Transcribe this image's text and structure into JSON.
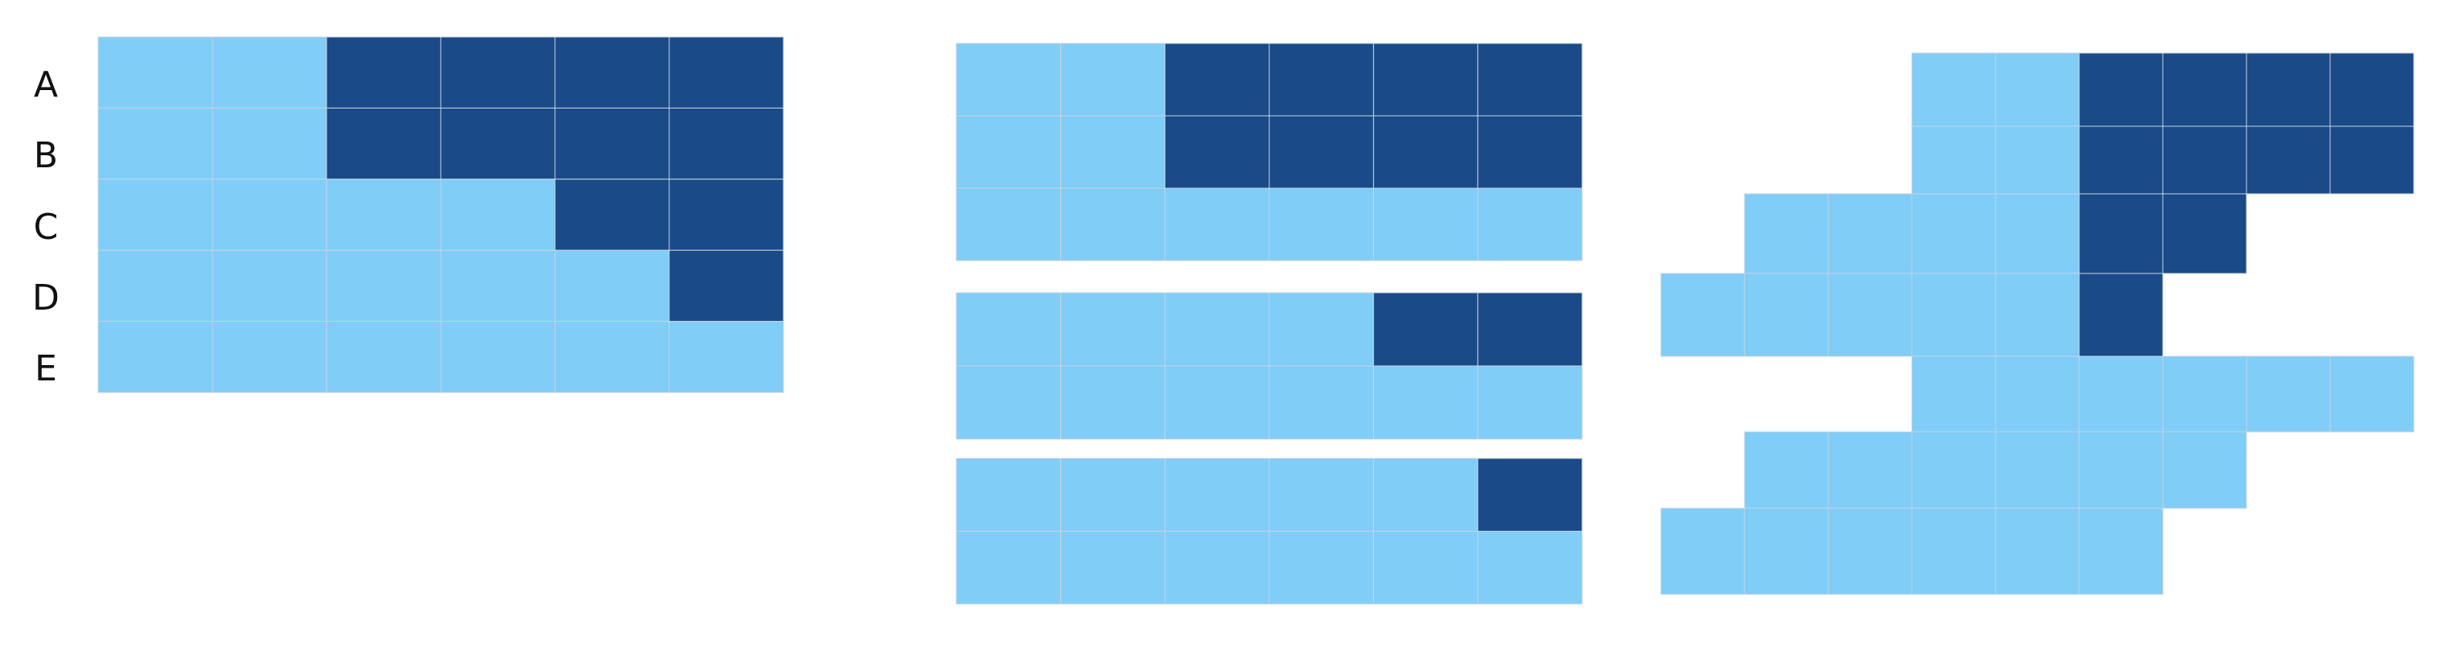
{
  "colors": {
    "light": "#80cdf8",
    "dark": "#1a4a87",
    "gridline": "#c6d4e0"
  },
  "row_labels": {
    "a": "A",
    "b": "B",
    "c": "C",
    "d": "D",
    "e": "E"
  },
  "panels": {
    "left": {
      "rows": [
        [
          0,
          0,
          1,
          1,
          1,
          1
        ],
        [
          0,
          0,
          1,
          1,
          1,
          1
        ],
        [
          0,
          0,
          0,
          0,
          1,
          1
        ],
        [
          0,
          0,
          0,
          0,
          0,
          1
        ],
        [
          0,
          0,
          0,
          0,
          0,
          0
        ]
      ]
    },
    "middle": {
      "blocks": [
        [
          [
            0,
            0,
            1,
            1,
            1,
            1
          ],
          [
            0,
            0,
            1,
            1,
            1,
            1
          ],
          [
            0,
            0,
            0,
            0,
            0,
            0
          ]
        ],
        [
          [
            0,
            0,
            0,
            0,
            1,
            1
          ],
          [
            0,
            0,
            0,
            0,
            0,
            0
          ]
        ],
        [
          [
            0,
            0,
            0,
            0,
            0,
            1
          ],
          [
            0,
            0,
            0,
            0,
            0,
            0
          ]
        ]
      ]
    },
    "right": {
      "rows": [
        [
          null,
          null,
          null,
          0,
          0,
          1,
          1,
          1,
          1
        ],
        [
          null,
          null,
          null,
          0,
          0,
          1,
          1,
          1,
          1
        ],
        [
          null,
          0,
          0,
          0,
          0,
          1,
          1,
          null,
          null
        ],
        [
          0,
          0,
          0,
          0,
          0,
          1,
          null,
          null,
          null
        ],
        [
          null,
          null,
          null,
          0,
          0,
          0,
          0,
          0,
          0
        ],
        [
          null,
          0,
          0,
          0,
          0,
          0,
          0,
          null,
          null
        ],
        [
          0,
          0,
          0,
          0,
          0,
          0,
          null,
          null,
          null
        ]
      ]
    }
  }
}
